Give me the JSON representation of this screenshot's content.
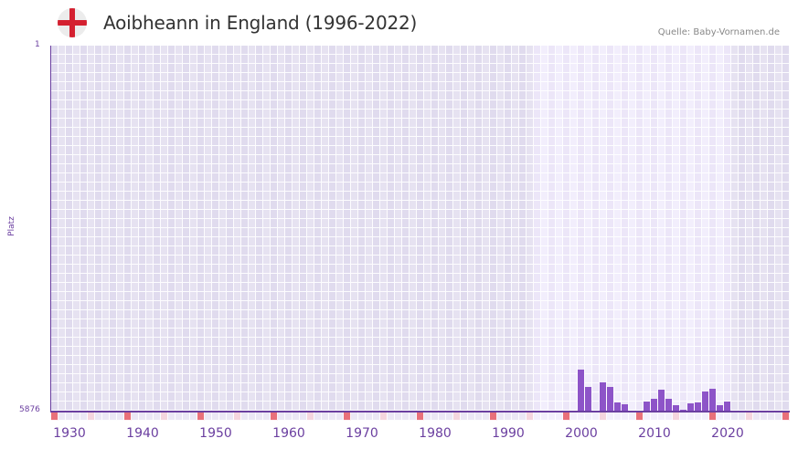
{
  "header": {
    "flag_icon": "england-flag-icon",
    "title": "Aoibheann in England (1996-2022)",
    "source": "Quelle: Baby-Vornamen.de"
  },
  "colors": {
    "bar": "#8d54c8",
    "axis": "#6b3fa0",
    "grid_dark": "#e3dff0",
    "grid_light": "#efebfa",
    "decade_marker": "#e8707a",
    "half_decade_marker": "#f5d5de"
  },
  "chart_data": {
    "type": "bar",
    "title": "Aoibheann in England (1996-2022)",
    "xlabel": "",
    "ylabel": "Platz",
    "y_inverted": true,
    "ylim": [
      1,
      5876
    ],
    "yticks": [
      "1",
      "5876"
    ],
    "xlim": [
      1928,
      2028
    ],
    "xticks": [
      "1930",
      "1940",
      "1950",
      "1960",
      "1970",
      "1980",
      "1990",
      "2000",
      "2010",
      "2020"
    ],
    "highlight_range": [
      1994,
      2020
    ],
    "grid": true,
    "x": [
      2000,
      2001,
      2003,
      2004,
      2005,
      2006,
      2009,
      2010,
      2011,
      2012,
      2013,
      2014,
      2015,
      2016,
      2017,
      2018,
      2019,
      2020
    ],
    "values": [
      5215,
      5494,
      5421,
      5494,
      5744,
      5773,
      5729,
      5685,
      5538,
      5685,
      5788,
      5861,
      5759,
      5744,
      5568,
      5524,
      5788,
      5729
    ]
  }
}
